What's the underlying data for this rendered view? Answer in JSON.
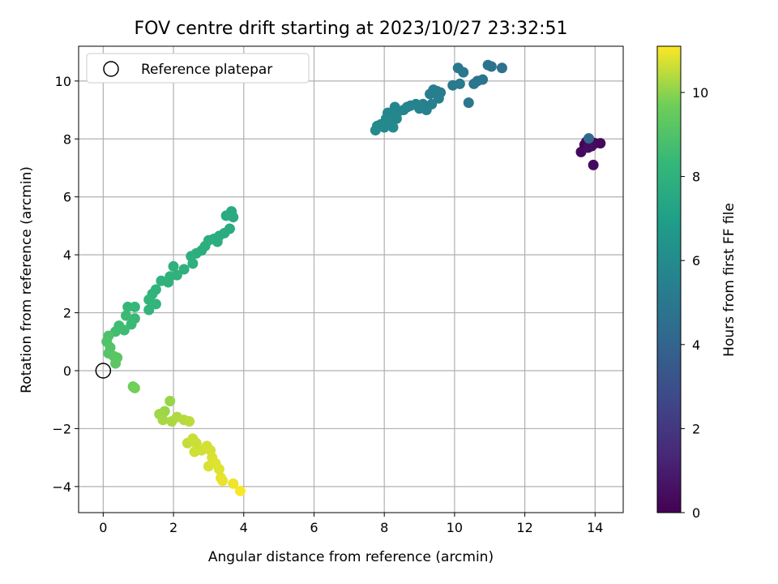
{
  "chart_data": {
    "type": "scatter",
    "title": "FOV centre drift starting at 2023/10/27 23:32:51",
    "xlabel": "Angular distance from reference (arcmin)",
    "ylabel": "Rotation from reference (arcmin)",
    "xlim": [
      -0.7,
      14.8
    ],
    "ylim": [
      -4.9,
      11.2
    ],
    "x_ticks": [
      0,
      2,
      4,
      6,
      8,
      10,
      12,
      14
    ],
    "y_ticks": [
      -4,
      -2,
      0,
      2,
      4,
      6,
      8,
      10
    ],
    "grid": true,
    "colorbar": {
      "label": "Hours from first FF file",
      "colormap": "viridis",
      "range": [
        0,
        11.1
      ],
      "ticks": [
        0,
        2,
        4,
        6,
        8,
        10
      ]
    },
    "legend": {
      "placement": "top-left",
      "entries": [
        "Reference platepar"
      ]
    },
    "reference": {
      "x": 0,
      "y": 0,
      "label": "Reference platepar"
    },
    "points": [
      {
        "x": 13.7,
        "y": 7.8,
        "h": 0.0
      },
      {
        "x": 13.75,
        "y": 7.9,
        "h": 0.1
      },
      {
        "x": 13.85,
        "y": 7.95,
        "h": 0.15
      },
      {
        "x": 14.0,
        "y": 7.85,
        "h": 0.2
      },
      {
        "x": 14.15,
        "y": 7.85,
        "h": 0.25
      },
      {
        "x": 13.6,
        "y": 7.55,
        "h": 0.3
      },
      {
        "x": 13.9,
        "y": 7.75,
        "h": 0.35
      },
      {
        "x": 13.95,
        "y": 7.1,
        "h": 0.4
      },
      {
        "x": 13.8,
        "y": 7.7,
        "h": 0.45
      },
      {
        "x": 13.82,
        "y": 8.02,
        "h": 4.2
      },
      {
        "x": 11.35,
        "y": 10.45,
        "h": 4.6
      },
      {
        "x": 11.05,
        "y": 10.5,
        "h": 4.7
      },
      {
        "x": 10.95,
        "y": 10.55,
        "h": 4.75
      },
      {
        "x": 10.8,
        "y": 10.05,
        "h": 4.8
      },
      {
        "x": 10.65,
        "y": 10.0,
        "h": 4.85
      },
      {
        "x": 10.55,
        "y": 9.9,
        "h": 4.9
      },
      {
        "x": 10.4,
        "y": 9.25,
        "h": 4.95
      },
      {
        "x": 10.25,
        "y": 10.3,
        "h": 5.0
      },
      {
        "x": 10.1,
        "y": 10.45,
        "h": 5.0
      },
      {
        "x": 10.15,
        "y": 9.9,
        "h": 5.05
      },
      {
        "x": 9.95,
        "y": 9.85,
        "h": 5.1
      },
      {
        "x": 9.6,
        "y": 9.6,
        "h": 5.2
      },
      {
        "x": 9.5,
        "y": 9.65,
        "h": 5.25
      },
      {
        "x": 9.4,
        "y": 9.7,
        "h": 5.3
      },
      {
        "x": 9.3,
        "y": 9.55,
        "h": 5.35
      },
      {
        "x": 9.55,
        "y": 9.4,
        "h": 5.4
      },
      {
        "x": 9.35,
        "y": 9.2,
        "h": 5.45
      },
      {
        "x": 9.2,
        "y": 9.0,
        "h": 5.5
      },
      {
        "x": 9.1,
        "y": 9.2,
        "h": 5.5
      },
      {
        "x": 9.0,
        "y": 9.05,
        "h": 5.55
      },
      {
        "x": 8.9,
        "y": 9.2,
        "h": 5.6
      },
      {
        "x": 8.75,
        "y": 9.15,
        "h": 5.6
      },
      {
        "x": 8.65,
        "y": 9.1,
        "h": 5.65
      },
      {
        "x": 8.55,
        "y": 9.0,
        "h": 5.65
      },
      {
        "x": 8.4,
        "y": 8.95,
        "h": 5.7
      },
      {
        "x": 8.3,
        "y": 9.1,
        "h": 5.7
      },
      {
        "x": 8.2,
        "y": 8.8,
        "h": 5.75
      },
      {
        "x": 8.1,
        "y": 8.9,
        "h": 5.75
      },
      {
        "x": 8.35,
        "y": 8.7,
        "h": 5.8
      },
      {
        "x": 8.15,
        "y": 8.6,
        "h": 5.8
      },
      {
        "x": 8.0,
        "y": 8.4,
        "h": 5.85
      },
      {
        "x": 8.05,
        "y": 8.7,
        "h": 5.85
      },
      {
        "x": 7.9,
        "y": 8.5,
        "h": 5.9
      },
      {
        "x": 7.8,
        "y": 8.45,
        "h": 5.9
      },
      {
        "x": 7.75,
        "y": 8.3,
        "h": 5.95
      },
      {
        "x": 8.25,
        "y": 8.4,
        "h": 5.95
      },
      {
        "x": 3.65,
        "y": 5.5,
        "h": 7.6
      },
      {
        "x": 3.7,
        "y": 5.3,
        "h": 7.6
      },
      {
        "x": 3.5,
        "y": 5.35,
        "h": 7.65
      },
      {
        "x": 3.6,
        "y": 4.9,
        "h": 7.65
      },
      {
        "x": 3.45,
        "y": 4.75,
        "h": 7.7
      },
      {
        "x": 3.3,
        "y": 4.65,
        "h": 7.7
      },
      {
        "x": 3.15,
        "y": 4.55,
        "h": 7.75
      },
      {
        "x": 3.25,
        "y": 4.45,
        "h": 7.75
      },
      {
        "x": 3.0,
        "y": 4.5,
        "h": 7.8
      },
      {
        "x": 2.9,
        "y": 4.3,
        "h": 7.8
      },
      {
        "x": 2.8,
        "y": 4.15,
        "h": 7.85
      },
      {
        "x": 2.65,
        "y": 4.05,
        "h": 7.85
      },
      {
        "x": 2.5,
        "y": 3.95,
        "h": 7.9
      },
      {
        "x": 2.55,
        "y": 3.7,
        "h": 7.9
      },
      {
        "x": 2.3,
        "y": 3.5,
        "h": 7.95
      },
      {
        "x": 2.0,
        "y": 3.6,
        "h": 7.95
      },
      {
        "x": 2.1,
        "y": 3.3,
        "h": 8.0
      },
      {
        "x": 1.9,
        "y": 3.25,
        "h": 8.0
      },
      {
        "x": 1.85,
        "y": 3.05,
        "h": 8.05
      },
      {
        "x": 1.65,
        "y": 3.1,
        "h": 8.05
      },
      {
        "x": 1.5,
        "y": 2.8,
        "h": 8.1
      },
      {
        "x": 1.4,
        "y": 2.65,
        "h": 8.1
      },
      {
        "x": 1.5,
        "y": 2.3,
        "h": 8.15
      },
      {
        "x": 1.3,
        "y": 2.1,
        "h": 8.15
      },
      {
        "x": 1.3,
        "y": 2.45,
        "h": 8.2
      },
      {
        "x": 0.9,
        "y": 2.2,
        "h": 8.3
      },
      {
        "x": 0.7,
        "y": 2.2,
        "h": 8.35
      },
      {
        "x": 0.9,
        "y": 1.8,
        "h": 8.4
      },
      {
        "x": 0.8,
        "y": 1.6,
        "h": 8.45
      },
      {
        "x": 0.65,
        "y": 1.9,
        "h": 8.5
      },
      {
        "x": 0.6,
        "y": 1.4,
        "h": 8.55
      },
      {
        "x": 0.45,
        "y": 1.55,
        "h": 8.6
      },
      {
        "x": 0.35,
        "y": 1.35,
        "h": 8.65
      },
      {
        "x": 0.15,
        "y": 1.2,
        "h": 8.9
      },
      {
        "x": 0.1,
        "y": 1.0,
        "h": 9.0
      },
      {
        "x": 0.2,
        "y": 0.8,
        "h": 9.05
      },
      {
        "x": 0.15,
        "y": 0.6,
        "h": 9.1
      },
      {
        "x": 0.3,
        "y": 0.5,
        "h": 9.15
      },
      {
        "x": 0.4,
        "y": 0.45,
        "h": 9.2
      },
      {
        "x": 0.35,
        "y": 0.25,
        "h": 9.25
      },
      {
        "x": 0.85,
        "y": -0.55,
        "h": 9.7
      },
      {
        "x": 0.9,
        "y": -0.6,
        "h": 9.75
      },
      {
        "x": 1.9,
        "y": -1.05,
        "h": 10.1
      },
      {
        "x": 1.75,
        "y": -1.4,
        "h": 10.15
      },
      {
        "x": 1.6,
        "y": -1.5,
        "h": 10.2
      },
      {
        "x": 1.7,
        "y": -1.7,
        "h": 10.25
      },
      {
        "x": 1.95,
        "y": -1.75,
        "h": 10.3
      },
      {
        "x": 2.1,
        "y": -1.6,
        "h": 10.35
      },
      {
        "x": 2.3,
        "y": -1.7,
        "h": 10.4
      },
      {
        "x": 2.45,
        "y": -1.75,
        "h": 10.45
      },
      {
        "x": 2.4,
        "y": -2.5,
        "h": 10.55
      },
      {
        "x": 2.55,
        "y": -2.35,
        "h": 10.6
      },
      {
        "x": 2.65,
        "y": -2.5,
        "h": 10.6
      },
      {
        "x": 2.6,
        "y": -2.8,
        "h": 10.65
      },
      {
        "x": 2.8,
        "y": -2.75,
        "h": 10.65
      },
      {
        "x": 2.95,
        "y": -2.6,
        "h": 10.7
      },
      {
        "x": 3.05,
        "y": -2.75,
        "h": 10.7
      },
      {
        "x": 3.1,
        "y": -3.0,
        "h": 10.75
      },
      {
        "x": 3.0,
        "y": -3.3,
        "h": 10.75
      },
      {
        "x": 3.2,
        "y": -3.2,
        "h": 10.8
      },
      {
        "x": 3.3,
        "y": -3.4,
        "h": 10.8
      },
      {
        "x": 3.35,
        "y": -3.7,
        "h": 10.85
      },
      {
        "x": 3.4,
        "y": -3.8,
        "h": 10.9
      },
      {
        "x": 3.7,
        "y": -3.9,
        "h": 10.95
      },
      {
        "x": 3.9,
        "y": -4.15,
        "h": 11.05
      }
    ]
  }
}
